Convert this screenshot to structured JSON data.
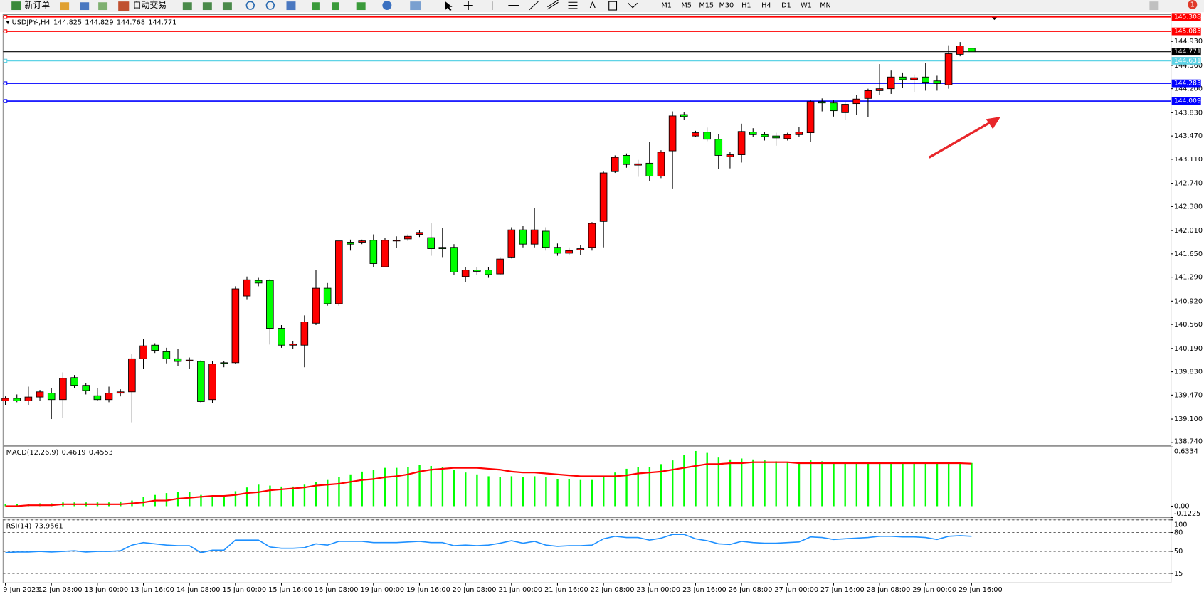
{
  "toolbar": {
    "new_order": "新订单",
    "auto_trading": "自动交易",
    "timeframes": [
      "M1",
      "M5",
      "M15",
      "M30",
      "H1",
      "H4",
      "D1",
      "W1",
      "MN"
    ],
    "notifications": 1
  },
  "chart_data": [
    {
      "type": "candlestick",
      "title": "USDJPY-,H4",
      "categories": [
        "9 Jun 2023",
        null,
        null,
        null,
        "12 Jun 08:00",
        null,
        null,
        null,
        "13 Jun 00:00",
        null,
        null,
        null,
        "13 Jun 16:00",
        null,
        null,
        null,
        "14 Jun 08:00",
        null,
        null,
        null,
        "15 Jun 00:00",
        null,
        null,
        null,
        "15 Jun 16:00",
        null,
        null,
        null,
        "16 Jun 08:00",
        null,
        null,
        null,
        "19 Jun 00:00",
        null,
        null,
        null,
        "19 Jun 16:00",
        null,
        null,
        null,
        "20 Jun 08:00",
        null,
        null,
        null,
        "21 Jun 00:00",
        null,
        null,
        null,
        "21 Jun 16:00",
        null,
        null,
        null,
        "22 Jun 08:00",
        null,
        null,
        null,
        "23 Jun 00:00",
        null,
        null,
        null,
        "23 Jun 16:00",
        null,
        null,
        null,
        "26 Jun 08:00",
        null,
        null,
        null,
        "27 Jun 00:00",
        null,
        null,
        null,
        "27 Jun 16:00",
        null,
        null,
        null,
        "28 Jun 08:00",
        null,
        null,
        null,
        "29 Jun 00:00",
        null,
        null,
        null,
        "29 Jun 16:00"
      ],
      "open": [
        139.38,
        139.42,
        139.38,
        139.44,
        139.5,
        139.4,
        139.74,
        139.62,
        139.46,
        139.4,
        139.5,
        139.52,
        140.03,
        140.24,
        140.14,
        140.03,
        140.0,
        139.99,
        139.4,
        139.97,
        139.97,
        141.0,
        141.24,
        141.24,
        140.5,
        140.24,
        140.24,
        140.58,
        141.12,
        140.88,
        141.83,
        141.83,
        141.86,
        141.45,
        141.86,
        141.88,
        141.95,
        141.9,
        141.75,
        141.75,
        141.3,
        141.4,
        141.4,
        141.34,
        141.6,
        142.02,
        141.8,
        142.0,
        141.75,
        141.66,
        141.71,
        141.75,
        142.15,
        142.92,
        143.17,
        143.02,
        143.05,
        142.85,
        143.24,
        143.8,
        143.47,
        143.53,
        143.42,
        143.15,
        143.18,
        143.53,
        143.49,
        143.47,
        143.43,
        143.49,
        143.52,
        144.0,
        143.98,
        143.83,
        143.97,
        144.05,
        144.17,
        144.2,
        144.38,
        144.34,
        144.38,
        144.32,
        144.26,
        144.73,
        144.825
      ],
      "high": [
        139.45,
        139.48,
        139.6,
        139.55,
        139.58,
        139.82,
        139.78,
        139.66,
        139.58,
        139.6,
        139.56,
        140.1,
        140.33,
        140.27,
        140.2,
        140.18,
        140.05,
        140.01,
        139.99,
        140.0,
        141.15,
        141.3,
        141.28,
        141.26,
        140.55,
        140.3,
        140.7,
        141.4,
        141.2,
        141.85,
        141.87,
        141.87,
        141.95,
        141.9,
        141.92,
        141.95,
        142.01,
        142.12,
        142.05,
        141.8,
        141.45,
        141.45,
        141.45,
        141.6,
        142.06,
        142.08,
        142.36,
        142.06,
        141.81,
        141.75,
        141.78,
        142.14,
        142.92,
        143.17,
        143.2,
        143.1,
        143.38,
        143.25,
        143.85,
        143.84,
        143.55,
        143.6,
        143.5,
        143.22,
        143.66,
        143.59,
        143.53,
        143.52,
        143.52,
        143.61,
        144.03,
        144.05,
        144.02,
        144.0,
        144.1,
        144.2,
        144.58,
        144.48,
        144.45,
        144.42,
        144.6,
        144.4,
        144.87,
        144.92,
        144.829
      ],
      "low": [
        139.32,
        139.36,
        139.32,
        139.38,
        139.1,
        139.12,
        139.58,
        139.48,
        139.38,
        139.36,
        139.45,
        139.05,
        139.88,
        140.12,
        139.96,
        139.92,
        139.88,
        139.35,
        139.35,
        139.9,
        139.95,
        140.95,
        141.15,
        140.25,
        140.2,
        140.18,
        139.9,
        140.55,
        140.85,
        140.85,
        141.7,
        141.8,
        141.45,
        141.45,
        141.74,
        141.85,
        141.91,
        141.62,
        141.6,
        141.33,
        141.22,
        141.32,
        141.28,
        141.32,
        141.58,
        141.75,
        141.75,
        141.7,
        141.62,
        141.63,
        141.63,
        141.7,
        141.75,
        142.9,
        142.98,
        142.84,
        142.78,
        142.82,
        142.66,
        143.72,
        143.45,
        143.39,
        142.96,
        142.97,
        143.06,
        143.46,
        143.4,
        143.32,
        143.4,
        143.45,
        143.38,
        143.85,
        143.77,
        143.72,
        143.8,
        143.76,
        144.1,
        144.12,
        144.21,
        144.15,
        144.17,
        144.17,
        144.2,
        144.7,
        144.768
      ],
      "close": [
        139.42,
        139.38,
        139.44,
        139.52,
        139.4,
        139.73,
        139.62,
        139.54,
        139.4,
        139.5,
        139.52,
        140.03,
        140.23,
        140.16,
        140.03,
        139.99,
        140.01,
        139.37,
        139.95,
        139.96,
        141.11,
        141.25,
        141.2,
        140.5,
        140.24,
        140.26,
        140.6,
        141.12,
        140.88,
        141.85,
        141.8,
        141.85,
        141.5,
        141.86,
        141.86,
        141.92,
        141.98,
        141.73,
        141.73,
        141.37,
        141.4,
        141.38,
        141.33,
        141.57,
        142.02,
        141.8,
        142.02,
        141.75,
        141.66,
        141.7,
        141.73,
        142.12,
        142.9,
        143.14,
        143.03,
        143.04,
        142.85,
        143.22,
        143.78,
        143.77,
        143.52,
        143.42,
        143.17,
        143.18,
        143.54,
        143.49,
        143.46,
        143.44,
        143.49,
        143.53,
        144.0,
        143.98,
        143.86,
        143.96,
        144.04,
        144.17,
        144.2,
        144.38,
        144.34,
        144.37,
        144.3,
        144.28,
        144.74,
        144.86,
        144.771
      ],
      "up_color": "#ff0000",
      "down_color": "#00ff00",
      "ylim": [
        138.693,
        145.332
      ],
      "yticks": [
        {
          "value": 144.93,
          "label": "144.930"
        },
        {
          "value": 144.56,
          "label": "144.560"
        },
        {
          "value": 144.2,
          "label": "144.200"
        },
        {
          "value": 143.83,
          "label": "143.830"
        },
        {
          "value": 143.47,
          "label": "143.470"
        },
        {
          "value": 143.11,
          "label": "143.110"
        },
        {
          "value": 142.74,
          "label": "142.740"
        },
        {
          "value": 142.38,
          "label": "142.380"
        },
        {
          "value": 142.01,
          "label": "142.010"
        },
        {
          "value": 141.65,
          "label": "141.650"
        },
        {
          "value": 141.29,
          "label": "141.290"
        },
        {
          "value": 140.92,
          "label": "140.920"
        },
        {
          "value": 140.56,
          "label": "140.560"
        },
        {
          "value": 140.19,
          "label": "140.190"
        },
        {
          "value": 139.83,
          "label": "139.830"
        },
        {
          "value": 139.47,
          "label": "139.470"
        },
        {
          "value": 139.1,
          "label": "139.100"
        },
        {
          "value": 138.74,
          "label": "138.740"
        }
      ],
      "levels": [
        {
          "value": 145.308,
          "color": "#ff0000"
        },
        {
          "value": 145.085,
          "color": "#ff0000"
        },
        {
          "value": 144.631,
          "color": "#5fd3e6"
        },
        {
          "value": 144.283,
          "color": "#0000ff"
        },
        {
          "value": 144.009,
          "color": "#0000ff"
        }
      ],
      "last_price_color": "#000000"
    },
    {
      "type": "macd",
      "title": "MACD(12,26,9)",
      "series": [
        {
          "type": "bar",
          "color": "#00ff00",
          "values": [
            0.02,
            0.02,
            0.02,
            0.03,
            0.03,
            0.04,
            0.04,
            0.04,
            0.04,
            0.04,
            0.05,
            0.06,
            0.1,
            0.12,
            0.14,
            0.15,
            0.15,
            0.12,
            0.11,
            0.11,
            0.16,
            0.2,
            0.23,
            0.22,
            0.21,
            0.21,
            0.23,
            0.26,
            0.28,
            0.31,
            0.34,
            0.37,
            0.39,
            0.41,
            0.41,
            0.42,
            0.44,
            0.43,
            0.42,
            0.39,
            0.36,
            0.34,
            0.32,
            0.31,
            0.32,
            0.31,
            0.32,
            0.31,
            0.29,
            0.29,
            0.28,
            0.28,
            0.31,
            0.36,
            0.4,
            0.42,
            0.42,
            0.45,
            0.49,
            0.55,
            0.59,
            0.57,
            0.52,
            0.5,
            0.51,
            0.5,
            0.49,
            0.48,
            0.47,
            0.46,
            0.49,
            0.48,
            0.47,
            0.47,
            0.47,
            0.47,
            0.46,
            0.46,
            0.46,
            0.46,
            0.46,
            0.46,
            0.46,
            0.46,
            0.4619
          ]
        },
        {
          "type": "line",
          "color": "#ff0000",
          "values": [
            0,
            0,
            0.01,
            0.01,
            0.01,
            0.02,
            0.02,
            0.02,
            0.02,
            0.02,
            0.02,
            0.03,
            0.04,
            0.06,
            0.06,
            0.08,
            0.09,
            0.1,
            0.11,
            0.11,
            0.12,
            0.14,
            0.15,
            0.17,
            0.18,
            0.19,
            0.2,
            0.22,
            0.23,
            0.24,
            0.26,
            0.28,
            0.29,
            0.31,
            0.32,
            0.34,
            0.37,
            0.39,
            0.4,
            0.41,
            0.41,
            0.41,
            0.4,
            0.39,
            0.37,
            0.36,
            0.36,
            0.35,
            0.34,
            0.33,
            0.32,
            0.32,
            0.32,
            0.32,
            0.33,
            0.35,
            0.36,
            0.37,
            0.39,
            0.41,
            0.43,
            0.45,
            0.45,
            0.46,
            0.46,
            0.47,
            0.47,
            0.47,
            0.47,
            0.46,
            0.46,
            0.46,
            0.46,
            0.46,
            0.46,
            0.46,
            0.46,
            0.46,
            0.46,
            0.46,
            0.46,
            0.46,
            0.46,
            0.46,
            0.4553
          ]
        }
      ],
      "ylim": [
        -0.1225,
        0.6334
      ],
      "yticks": [
        0.6334,
        {
          "value": 0,
          "label": "0.00"
        },
        -0.1225
      ]
    },
    {
      "type": "line",
      "title": "RSI(14)",
      "series": [
        {
          "color": "#1e90ff",
          "values": [
            48,
            49,
            49,
            50,
            49,
            50,
            51,
            49,
            50,
            50,
            51,
            60,
            64,
            62,
            60,
            59,
            59,
            48,
            52,
            52,
            68,
            68,
            68,
            57,
            55,
            55,
            56,
            62,
            60,
            66,
            66,
            66,
            64,
            64,
            64,
            65,
            66,
            64,
            64,
            59,
            60,
            59,
            60,
            63,
            67,
            63,
            66,
            60,
            58,
            59,
            59,
            60,
            70,
            74,
            72,
            72,
            68,
            71,
            77,
            77,
            70,
            67,
            62,
            61,
            66,
            64,
            63,
            63,
            64,
            65,
            73,
            72,
            69,
            70,
            71,
            72,
            74,
            74,
            73,
            73,
            72,
            69,
            74,
            75,
            73.9561
          ]
        }
      ],
      "ylim": [
        0,
        100
      ],
      "yticks": [
        100,
        80,
        50,
        15
      ],
      "grid": true
    }
  ]
}
